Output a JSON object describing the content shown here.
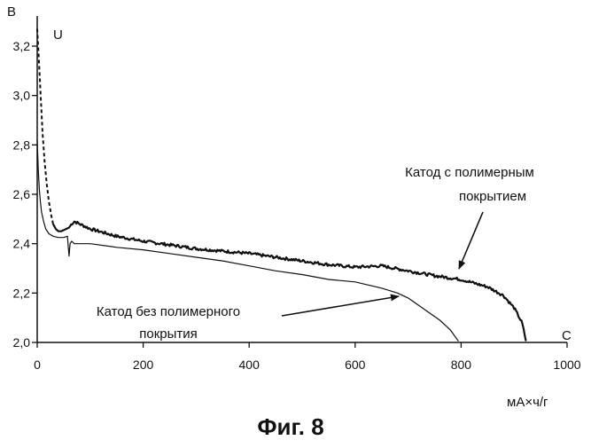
{
  "chart_data": {
    "type": "line",
    "ylabel": "В",
    "xlabel": "мА×ч/г",
    "caption": "Фиг. 8",
    "y_axis_symbol": "U",
    "x_axis_symbol": "C",
    "xlim": [
      0,
      1000
    ],
    "ylim": [
      2.0,
      3.3
    ],
    "x_ticks": [
      0,
      200,
      400,
      600,
      800,
      1000
    ],
    "x_tick_labels": [
      "0",
      "200",
      "400",
      "600",
      "800",
      "1000"
    ],
    "y_ticks": [
      2.0,
      2.2,
      2.4,
      2.6,
      2.8,
      3.0,
      3.2
    ],
    "y_tick_labels": [
      "2,0",
      "2,2",
      "2,4",
      "2,6",
      "2,8",
      "3,0",
      "3,2"
    ],
    "grid": false,
    "series": [
      {
        "name": "Катод с полимерным покрытием",
        "style": "thick-noisy",
        "x": [
          0,
          3,
          6,
          10,
          14,
          18,
          22,
          26,
          30,
          35,
          40,
          45,
          50,
          55,
          60,
          65,
          70,
          80,
          100,
          150,
          200,
          250,
          300,
          350,
          400,
          450,
          500,
          550,
          600,
          650,
          700,
          750,
          800,
          850,
          880,
          900,
          915,
          922
        ],
        "y": [
          3.27,
          3.15,
          3.02,
          2.85,
          2.73,
          2.64,
          2.57,
          2.52,
          2.48,
          2.46,
          2.45,
          2.45,
          2.455,
          2.46,
          2.465,
          2.48,
          2.49,
          2.48,
          2.46,
          2.43,
          2.41,
          2.395,
          2.38,
          2.37,
          2.36,
          2.345,
          2.33,
          2.315,
          2.305,
          2.31,
          2.29,
          2.27,
          2.255,
          2.225,
          2.19,
          2.14,
          2.08,
          2.01
        ]
      },
      {
        "name": "Катод без полимерного покрытия",
        "style": "thin",
        "x": [
          0,
          2,
          4,
          6,
          8,
          12,
          16,
          22,
          30,
          40,
          50,
          57,
          60,
          62,
          65,
          70,
          100,
          150,
          200,
          250,
          300,
          350,
          400,
          450,
          500,
          550,
          600,
          650,
          680,
          700,
          720,
          740,
          760,
          780,
          795
        ],
        "y": [
          2.82,
          2.7,
          2.62,
          2.57,
          2.53,
          2.49,
          2.46,
          2.44,
          2.43,
          2.425,
          2.425,
          2.43,
          2.35,
          2.4,
          2.41,
          2.4,
          2.4,
          2.385,
          2.375,
          2.36,
          2.345,
          2.33,
          2.31,
          2.29,
          2.275,
          2.255,
          2.245,
          2.22,
          2.2,
          2.18,
          2.15,
          2.12,
          2.09,
          2.05,
          2.005
        ]
      }
    ],
    "annotations": [
      {
        "text_lines": [
          "Катод с полимерным",
          "покрытием"
        ],
        "target_series": 0
      },
      {
        "text_lines": [
          "Катод без полимерного",
          "покрытия"
        ],
        "target_series": 1
      }
    ]
  }
}
